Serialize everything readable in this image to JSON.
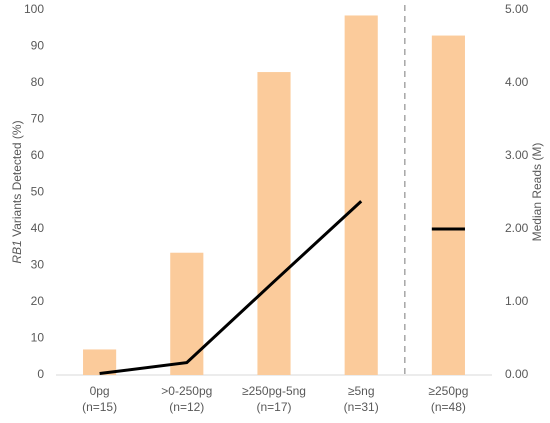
{
  "chart_data": {
    "type": "bar",
    "categories": [
      [
        "0pg",
        "(n=15)"
      ],
      [
        ">0-250pg",
        "(n=12)"
      ],
      [
        "≥250pg-5ng",
        "(n=17)"
      ],
      [
        "≥5ng",
        "(n=31)"
      ],
      [
        "≥250pg",
        "(n=48)"
      ]
    ],
    "series": [
      {
        "color": "#fbcb9b",
        "values": [
          7,
          33.5,
          83,
          98.5,
          93
        ]
      },
      {
        "type": "line",
        "axis": "y2",
        "color": "#000000",
        "values": [
          0.02,
          0.17,
          1.28,
          2.38,
          2.0
        ]
      }
    ],
    "divider_after": 3,
    "ylabel": [
      "RB1",
      " Variants Detected (%)"
    ],
    "y2label": "Median Reads (M)",
    "ylim": [
      0,
      100
    ],
    "yticks": [
      0,
      10,
      20,
      30,
      40,
      50,
      60,
      70,
      80,
      90,
      100
    ],
    "y2lim": [
      0,
      5
    ],
    "y2ticks": [
      {
        "value": 0,
        "label": "0.00"
      },
      {
        "value": 1,
        "label": "1.00"
      },
      {
        "value": 2,
        "label": "2.00"
      },
      {
        "value": 3,
        "label": "3.00"
      },
      {
        "value": 4,
        "label": "4.00"
      },
      {
        "value": 5,
        "label": "5.00"
      }
    ],
    "grid": false
  }
}
